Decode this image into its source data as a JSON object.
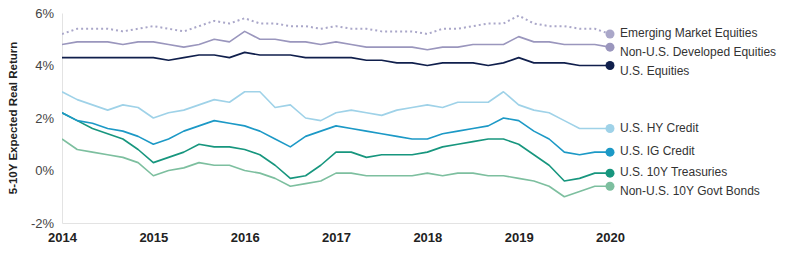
{
  "chart_data": {
    "type": "line",
    "y_label": "5-10Y Expected Real Return",
    "x": [
      2014,
      2014.1667,
      2014.3333,
      2014.5,
      2014.6667,
      2014.8333,
      2015,
      2015.1667,
      2015.3333,
      2015.5,
      2015.6667,
      2015.8333,
      2016,
      2016.1667,
      2016.3333,
      2016.5,
      2016.6667,
      2016.8333,
      2017,
      2017.1667,
      2017.3333,
      2017.5,
      2017.6667,
      2017.8333,
      2018,
      2018.1667,
      2018.3333,
      2018.5,
      2018.6667,
      2018.8333,
      2019,
      2019.1667,
      2019.3333,
      2019.5,
      2019.6667,
      2019.8333,
      2020
    ],
    "xlim": [
      2014,
      2020
    ],
    "xticks": [
      2014,
      2015,
      2016,
      2017,
      2018,
      2019,
      2020
    ],
    "ylim": [
      -2,
      6
    ],
    "yticks": [
      {
        "value": -2,
        "label": "-2%"
      },
      {
        "value": 0,
        "label": "0%"
      },
      {
        "value": 2,
        "label": "2%"
      },
      {
        "value": 4,
        "label": "4%"
      },
      {
        "value": 6,
        "label": "6%"
      }
    ],
    "grid": false,
    "legend": "right",
    "series": [
      {
        "name": "Emerging Market Equities",
        "color": "#aaa7c9",
        "line_style": "dotted",
        "values": [
          5.2,
          5.4,
          5.4,
          5.4,
          5.3,
          5.4,
          5.5,
          5.4,
          5.3,
          5.5,
          5.7,
          5.6,
          5.8,
          5.6,
          5.6,
          5.5,
          5.5,
          5.4,
          5.5,
          5.4,
          5.4,
          5.3,
          5.3,
          5.3,
          5.2,
          5.4,
          5.4,
          5.5,
          5.6,
          5.6,
          5.9,
          5.6,
          5.5,
          5.5,
          5.4,
          5.4,
          5.2
        ]
      },
      {
        "name": "Non-U.S. Developed Equities",
        "color": "#9a96bd",
        "line_style": "solid",
        "values": [
          4.8,
          4.9,
          4.9,
          4.9,
          4.8,
          4.9,
          4.9,
          4.8,
          4.7,
          4.8,
          5.0,
          4.9,
          5.3,
          5.0,
          5.0,
          4.9,
          4.9,
          4.8,
          4.9,
          4.8,
          4.7,
          4.7,
          4.7,
          4.7,
          4.6,
          4.7,
          4.7,
          4.8,
          4.8,
          4.8,
          5.1,
          4.9,
          4.9,
          4.8,
          4.8,
          4.8,
          4.7
        ]
      },
      {
        "name": "U.S. Equities",
        "color": "#101f4c",
        "line_style": "solid",
        "values": [
          4.3,
          4.3,
          4.3,
          4.3,
          4.3,
          4.3,
          4.3,
          4.2,
          4.3,
          4.4,
          4.4,
          4.3,
          4.5,
          4.4,
          4.4,
          4.4,
          4.3,
          4.3,
          4.3,
          4.3,
          4.2,
          4.2,
          4.1,
          4.1,
          4.0,
          4.1,
          4.1,
          4.1,
          4.0,
          4.1,
          4.3,
          4.1,
          4.1,
          4.1,
          4.0,
          4.0,
          4.0
        ]
      },
      {
        "name": "U.S. HY Credit",
        "color": "#9fd2e8",
        "line_style": "solid",
        "values": [
          3.0,
          2.7,
          2.5,
          2.3,
          2.5,
          2.4,
          2.0,
          2.2,
          2.3,
          2.5,
          2.7,
          2.6,
          3.0,
          3.0,
          2.4,
          2.5,
          2.0,
          1.9,
          2.2,
          2.3,
          2.2,
          2.1,
          2.3,
          2.4,
          2.5,
          2.4,
          2.6,
          2.6,
          2.6,
          3.0,
          2.5,
          2.3,
          2.2,
          1.9,
          1.6,
          1.6,
          1.6
        ]
      },
      {
        "name": "U.S. IG Credit",
        "color": "#1c99c6",
        "line_style": "solid",
        "values": [
          2.2,
          1.9,
          1.8,
          1.6,
          1.5,
          1.3,
          1.0,
          1.2,
          1.5,
          1.7,
          1.9,
          1.8,
          1.7,
          1.5,
          1.2,
          0.9,
          1.3,
          1.5,
          1.7,
          1.6,
          1.5,
          1.4,
          1.3,
          1.2,
          1.2,
          1.4,
          1.5,
          1.6,
          1.7,
          2.0,
          1.9,
          1.5,
          1.2,
          0.7,
          0.6,
          0.7,
          0.7
        ]
      },
      {
        "name": "U.S. 10Y Treasuries",
        "color": "#17967e",
        "line_style": "solid",
        "values": [
          2.2,
          1.9,
          1.6,
          1.4,
          1.2,
          0.8,
          0.3,
          0.5,
          0.7,
          1.0,
          0.9,
          0.9,
          0.8,
          0.6,
          0.2,
          -0.3,
          -0.2,
          0.2,
          0.7,
          0.7,
          0.5,
          0.6,
          0.6,
          0.6,
          0.7,
          0.9,
          1.0,
          1.1,
          1.2,
          1.2,
          1.0,
          0.6,
          0.2,
          -0.4,
          -0.3,
          -0.1,
          -0.1
        ]
      },
      {
        "name": "Non-U.S. 10Y Govt Bonds",
        "color": "#7dbf9f",
        "line_style": "solid",
        "values": [
          1.2,
          0.8,
          0.7,
          0.6,
          0.5,
          0.3,
          -0.2,
          0.0,
          0.1,
          0.3,
          0.2,
          0.2,
          0.0,
          -0.1,
          -0.3,
          -0.6,
          -0.5,
          -0.4,
          -0.1,
          -0.1,
          -0.2,
          -0.2,
          -0.2,
          -0.2,
          -0.1,
          -0.2,
          -0.1,
          -0.1,
          -0.2,
          -0.2,
          -0.3,
          -0.4,
          -0.6,
          -1.0,
          -0.8,
          -0.6,
          -0.6
        ]
      }
    ]
  }
}
